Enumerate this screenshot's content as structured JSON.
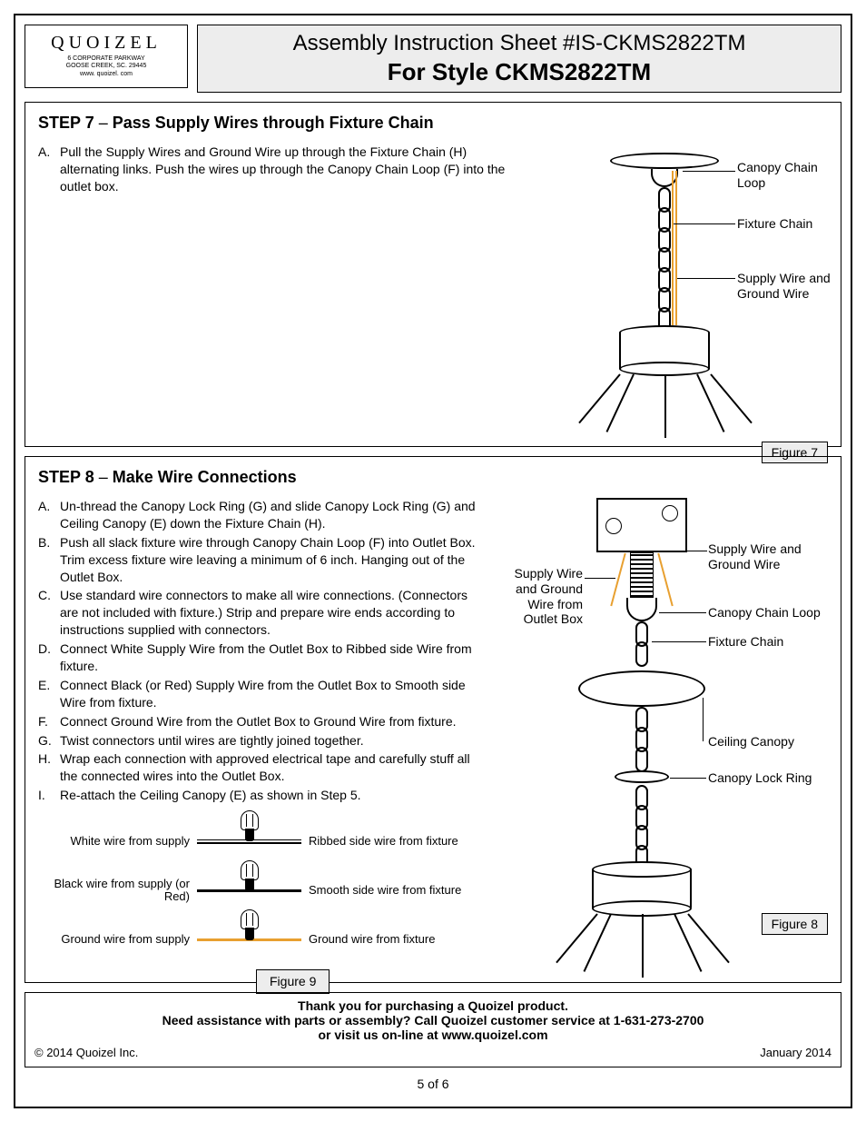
{
  "logo": {
    "brand": "QUOIZEL",
    "addr1": "6 CORPORATE PARKWAY",
    "addr2": "GOOSE CREEK, SC. 29445",
    "addr3": "www. quoizel. com"
  },
  "title": {
    "line1": "Assembly Instruction Sheet #IS-CKMS2822TM",
    "line2": "For Style CKMS2822TM"
  },
  "step7": {
    "heading": "STEP 7",
    "dash": "–",
    "subtitle": "Pass Supply Wires through Fixture Chain",
    "items": [
      {
        "letter": "A.",
        "body": "Pull the Supply Wires and Ground Wire up through the Fixture Chain (H) alternating links. Push the wires up through the Canopy Chain Loop (F) into the outlet box."
      }
    ],
    "callouts": {
      "canopy_loop": "Canopy Chain Loop",
      "fixture_chain": "Fixture Chain",
      "supply_wire": "Supply Wire and Ground Wire"
    },
    "figure_label": "Figure 7"
  },
  "step8": {
    "heading": "STEP 8",
    "dash": "–",
    "subtitle": "Make Wire Connections",
    "items": [
      {
        "letter": "A.",
        "body": "Un-thread the Canopy Lock Ring (G) and slide Canopy Lock Ring (G) and Ceiling Canopy (E) down the Fixture Chain (H)."
      },
      {
        "letter": "B.",
        "body": "Push all slack fixture wire through Canopy Chain Loop (F) into Outlet Box. Trim excess fixture wire leaving a minimum of 6 inch. Hanging out of the Outlet Box."
      },
      {
        "letter": "C.",
        "body": "Use standard wire connectors to make all wire connections. (Connectors are not included with fixture.) Strip and prepare wire ends according to instructions supplied with connectors."
      },
      {
        "letter": "D.",
        "body": "Connect White Supply Wire from the Outlet Box to Ribbed side Wire from fixture."
      },
      {
        "letter": "E.",
        "body": "Connect Black (or Red) Supply Wire from the Outlet Box to Smooth side Wire from fixture."
      },
      {
        "letter": "F.",
        "body": "Connect Ground Wire from the Outlet Box to Ground Wire from fixture."
      },
      {
        "letter": "G.",
        "body": "Twist connectors until wires are tightly joined together."
      },
      {
        "letter": "H.",
        "body": "Wrap each connection with approved electrical tape and carefully stuff all the connected wires into the Outlet Box."
      },
      {
        "letter": "I.",
        "body": "Re-attach the Ceiling Canopy (E) as shown in Step 5."
      }
    ],
    "callouts": {
      "supply_ground_box": "Supply Wire and Ground Wire from Outlet Box",
      "supply_ground": "Supply Wire and Ground Wire",
      "canopy_loop": "Canopy Chain Loop",
      "fixture_chain": "Fixture Chain",
      "ceiling_canopy": "Ceiling Canopy",
      "canopy_lock_ring": "Canopy Lock Ring"
    },
    "figure_label": "Figure 8"
  },
  "wire_diagram": {
    "rows": [
      {
        "left": "White wire from supply",
        "right": "Ribbed side wire from fixture",
        "style_left": "double",
        "style_right": "double",
        "color_left": "#000000",
        "color_right": "#000000"
      },
      {
        "left": "Black wire from supply (or Red)",
        "right": "Smooth side wire from fixture",
        "style_left": "solid",
        "style_right": "solid",
        "color_left": "#000000",
        "color_right": "#000000"
      },
      {
        "left": "Ground wire from supply",
        "right": "Ground wire from fixture",
        "style_left": "orange",
        "style_right": "orange",
        "color_left": "#e8a030",
        "color_right": "#e8a030"
      }
    ],
    "figure_label": "Figure 9"
  },
  "footer": {
    "line1": "Thank you for purchasing a Quoizel product.",
    "line2": "Need assistance with parts or assembly? Call Quoizel customer service at 1-631-273-2700",
    "line3": "or visit us on-line at www.quoizel.com",
    "copyright": "© 2014  Quoizel Inc.",
    "date": "January 2014",
    "page": "5 of 6"
  },
  "colors": {
    "wire_orange": "#e8a030",
    "shade_bg": "#ededed",
    "border": "#000000"
  }
}
